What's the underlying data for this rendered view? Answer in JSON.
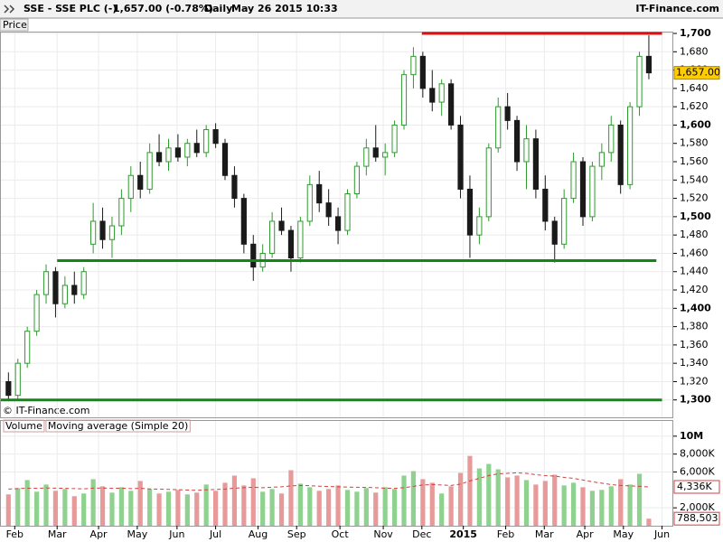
{
  "header": {
    "symbol": "SSE - SSE PLC (-)",
    "quote": "1,657.00 (-0.78%)",
    "period": "Daily",
    "date": "May 26 2015 10:33",
    "source": "IT-Finance.com"
  },
  "chart_data": [
    {
      "type": "candlestick",
      "pane_label": "Price",
      "watermark": "© IT-Finance.com",
      "categories": [
        null,
        null,
        null,
        null,
        null,
        null,
        null,
        null,
        null,
        null,
        null,
        null,
        null,
        null,
        null,
        null,
        null,
        null,
        null,
        null,
        null,
        null,
        null,
        null,
        null,
        null,
        null,
        null,
        null,
        null,
        null,
        null,
        null,
        null,
        null,
        null,
        null,
        null,
        null,
        null,
        null,
        null,
        null,
        null,
        null,
        null,
        null,
        null,
        null,
        null,
        null,
        null,
        null,
        null,
        null,
        null,
        null,
        null,
        null,
        null,
        null,
        null,
        null,
        null,
        null,
        null,
        null,
        null,
        null
      ],
      "ohlc": [
        [
          1320,
          1330,
          1300,
          1305
        ],
        [
          1305,
          1345,
          1300,
          1340
        ],
        [
          1340,
          1380,
          1335,
          1375
        ],
        [
          1375,
          1420,
          1370,
          1415
        ],
        [
          1415,
          1448,
          1405,
          1440
        ],
        [
          1440,
          1445,
          1390,
          1405
        ],
        [
          1405,
          1435,
          1400,
          1425
        ],
        [
          1425,
          1440,
          1405,
          1415
        ],
        [
          1415,
          1445,
          1410,
          1440
        ],
        [
          1470,
          1515,
          1460,
          1495
        ],
        [
          1495,
          1510,
          1465,
          1475
        ],
        [
          1475,
          1500,
          1455,
          1490
        ],
        [
          1490,
          1530,
          1480,
          1520
        ],
        [
          1520,
          1555,
          1505,
          1545
        ],
        [
          1545,
          1560,
          1520,
          1530
        ],
        [
          1530,
          1580,
          1525,
          1570
        ],
        [
          1570,
          1590,
          1555,
          1560
        ],
        [
          1560,
          1585,
          1550,
          1575
        ],
        [
          1575,
          1590,
          1560,
          1565
        ],
        [
          1565,
          1585,
          1555,
          1580
        ],
        [
          1580,
          1595,
          1565,
          1570
        ],
        [
          1570,
          1600,
          1565,
          1595
        ],
        [
          1595,
          1602,
          1575,
          1580
        ],
        [
          1580,
          1585,
          1540,
          1545
        ],
        [
          1545,
          1555,
          1510,
          1520
        ],
        [
          1520,
          1525,
          1460,
          1470
        ],
        [
          1470,
          1480,
          1430,
          1445
        ],
        [
          1445,
          1470,
          1440,
          1460
        ],
        [
          1460,
          1505,
          1455,
          1495
        ],
        [
          1495,
          1510,
          1480,
          1485
        ],
        [
          1485,
          1490,
          1440,
          1455
        ],
        [
          1455,
          1500,
          1450,
          1495
        ],
        [
          1495,
          1545,
          1490,
          1535
        ],
        [
          1535,
          1550,
          1505,
          1515
        ],
        [
          1515,
          1530,
          1490,
          1500
        ],
        [
          1500,
          1510,
          1470,
          1485
        ],
        [
          1485,
          1530,
          1480,
          1525
        ],
        [
          1525,
          1560,
          1520,
          1555
        ],
        [
          1555,
          1585,
          1545,
          1575
        ],
        [
          1575,
          1600,
          1560,
          1565
        ],
        [
          1565,
          1580,
          1545,
          1570
        ],
        [
          1570,
          1605,
          1565,
          1600
        ],
        [
          1600,
          1660,
          1595,
          1655
        ],
        [
          1655,
          1685,
          1640,
          1675
        ],
        [
          1675,
          1680,
          1630,
          1640
        ],
        [
          1640,
          1660,
          1615,
          1625
        ],
        [
          1625,
          1650,
          1610,
          1645
        ],
        [
          1645,
          1650,
          1595,
          1600
        ],
        [
          1600,
          1610,
          1520,
          1530
        ],
        [
          1530,
          1545,
          1455,
          1480
        ],
        [
          1480,
          1510,
          1470,
          1500
        ],
        [
          1500,
          1580,
          1495,
          1575
        ],
        [
          1575,
          1630,
          1570,
          1620
        ],
        [
          1620,
          1635,
          1595,
          1605
        ],
        [
          1605,
          1610,
          1550,
          1560
        ],
        [
          1560,
          1600,
          1530,
          1585
        ],
        [
          1585,
          1595,
          1520,
          1530
        ],
        [
          1530,
          1545,
          1485,
          1495
        ],
        [
          1495,
          1500,
          1450,
          1470
        ],
        [
          1470,
          1530,
          1465,
          1520
        ],
        [
          1520,
          1570,
          1515,
          1560
        ],
        [
          1560,
          1565,
          1490,
          1500
        ],
        [
          1500,
          1560,
          1495,
          1555
        ],
        [
          1555,
          1580,
          1540,
          1570
        ],
        [
          1570,
          1610,
          1560,
          1600
        ],
        [
          1600,
          1605,
          1525,
          1535
        ],
        [
          1535,
          1625,
          1530,
          1620
        ],
        [
          1620,
          1680,
          1610,
          1675
        ],
        [
          1675,
          1698,
          1650,
          1657
        ]
      ],
      "last_label": "1,657.00",
      "up_color": "#2d9a2d",
      "down_color": "#1a1a1a",
      "ylim": [
        1281,
        1701
      ],
      "yticks": [
        {
          "value": 1300,
          "label": "1,300"
        },
        {
          "value": 1320,
          "label": "1,320"
        },
        {
          "value": 1340,
          "label": "1,340"
        },
        {
          "value": 1360,
          "label": "1,360"
        },
        {
          "value": 1380,
          "label": "1,380"
        },
        {
          "value": 1400,
          "label": "1,400"
        },
        {
          "value": 1420,
          "label": "1,420"
        },
        {
          "value": 1440,
          "label": "1,440"
        },
        {
          "value": 1460,
          "label": "1,460"
        },
        {
          "value": 1480,
          "label": "1,480"
        },
        {
          "value": 1500,
          "label": "1,500"
        },
        {
          "value": 1520,
          "label": "1,520"
        },
        {
          "value": 1540,
          "label": "1,540"
        },
        {
          "value": 1560,
          "label": "1,560"
        },
        {
          "value": 1580,
          "label": "1,580"
        },
        {
          "value": 1600,
          "label": "1,600"
        },
        {
          "value": 1620,
          "label": "1,620"
        },
        {
          "value": 1640,
          "label": "1,640"
        },
        {
          "value": 1660,
          "label": "1,660"
        },
        {
          "value": 1680,
          "label": "1,680"
        },
        {
          "value": 1700,
          "label": "1,700"
        }
      ],
      "xlim": [
        -0.8,
        70.5
      ],
      "xticks": [
        {
          "value": 0.67,
          "label": "Feb"
        },
        {
          "value": 5.17,
          "label": "Mar"
        },
        {
          "value": 9.57,
          "label": "Apr"
        },
        {
          "value": 13.68,
          "label": "May"
        },
        {
          "value": 17.9,
          "label": "Jun"
        },
        {
          "value": 22.0,
          "label": "Jul"
        },
        {
          "value": 26.5,
          "label": "Aug"
        },
        {
          "value": 30.6,
          "label": "Sep"
        },
        {
          "value": 35.2,
          "label": "Oct"
        },
        {
          "value": 39.8,
          "label": "Nov"
        },
        {
          "value": 43.9,
          "label": "Dec"
        },
        {
          "value": 48.3,
          "label": "2015"
        },
        {
          "value": 52.8,
          "label": "Feb"
        },
        {
          "value": 56.9,
          "label": "Mar"
        },
        {
          "value": 61.2,
          "label": "Apr"
        },
        {
          "value": 65.3,
          "label": "May"
        },
        {
          "value": 69.4,
          "label": "Jun"
        }
      ],
      "hlines": [
        {
          "value": 1700,
          "color": "#e01010",
          "from": 43.9,
          "to": 69.4
        },
        {
          "value": 1452,
          "color": "#118811",
          "from": 5.17,
          "to": 68.8
        },
        {
          "value": 1300,
          "color": "#118811",
          "from": -0.8,
          "to": 69.4
        }
      ],
      "grid": true
    },
    {
      "type": "bar",
      "series": [
        {
          "name": "Volume",
          "type": "bar",
          "up_color": "#8fd18f",
          "down_color": "#e89a9a",
          "last_label": "788,503",
          "values": [
            3500000,
            4200000,
            5100000,
            3800000,
            4600000,
            3900000,
            4100000,
            3300000,
            3600000,
            5200000,
            4400000,
            3700000,
            4300000,
            3900000,
            5000000,
            4100000,
            3600000,
            3800000,
            4000000,
            3500000,
            3700000,
            4600000,
            3900000,
            4800000,
            5600000,
            4500000,
            5300000,
            3800000,
            4100000,
            3600000,
            6200000,
            4700000,
            4300000,
            3900000,
            4100000,
            4500000,
            4000000,
            3800000,
            4200000,
            3700000,
            4300000,
            4100000,
            5600000,
            6100000,
            5200000,
            4800000,
            3600000,
            4400000,
            5900000,
            7800000,
            6400000,
            6900000,
            6300000,
            5400000,
            5600000,
            5100000,
            4600000,
            5000000,
            5700000,
            4500000,
            4800000,
            4300000,
            3900000,
            4000000,
            4400000,
            5200000,
            4600000,
            5800000,
            788503
          ]
        },
        {
          "name": "Moving average (Simple 20)",
          "type": "line",
          "color": "#d04040",
          "last_label": "4,336K",
          "values": [
            4100000,
            4150000,
            4200000,
            4180000,
            4220000,
            4200000,
            4180000,
            4150000,
            4120000,
            4200000,
            4220000,
            4180000,
            4200000,
            4150000,
            4180000,
            4120000,
            4080000,
            4050000,
            4020000,
            3980000,
            3950000,
            4000000,
            4050000,
            4100000,
            4200000,
            4250000,
            4300000,
            4250000,
            4300000,
            4350000,
            4450000,
            4500000,
            4480000,
            4420000,
            4380000,
            4350000,
            4320000,
            4300000,
            4280000,
            4250000,
            4200000,
            4180000,
            4250000,
            4400000,
            4550000,
            4600000,
            4550000,
            4500000,
            4650000,
            5000000,
            5300000,
            5600000,
            5800000,
            5850000,
            5900000,
            5850000,
            5700000,
            5600000,
            5550000,
            5400000,
            5300000,
            5100000,
            4900000,
            4750000,
            4600000,
            4500000,
            4450000,
            4400000,
            4336000
          ]
        }
      ],
      "ylim": [
        0,
        11700000
      ],
      "yticks": [
        {
          "value": 2000000,
          "label": "2,000K"
        },
        {
          "value": 6000000,
          "label": "6,000K"
        },
        {
          "value": 8000000,
          "label": "8,000K"
        },
        {
          "value": 10000000,
          "label": "10M"
        }
      ],
      "grid": true
    }
  ]
}
